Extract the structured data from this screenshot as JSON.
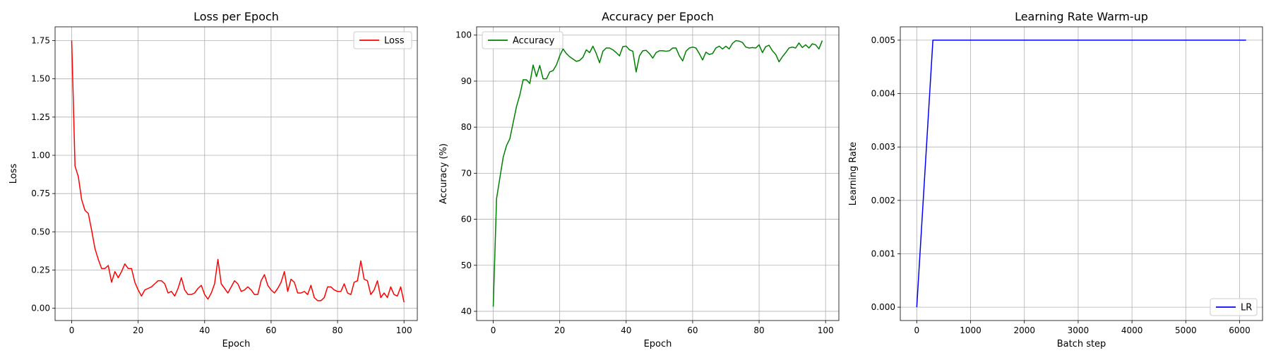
{
  "chart_data": [
    {
      "type": "line",
      "title": "Loss per Epoch",
      "xlabel": "Epoch",
      "ylabel": "Loss",
      "xlim": [
        -5,
        104
      ],
      "ylim": [
        -0.08,
        1.84
      ],
      "xticks": [
        0,
        20,
        40,
        60,
        80,
        100
      ],
      "yticks": [
        0.0,
        0.25,
        0.5,
        0.75,
        1.0,
        1.25,
        1.5,
        1.75
      ],
      "ytick_labels": [
        "0.00",
        "0.25",
        "0.50",
        "0.75",
        "1.00",
        "1.25",
        "1.50",
        "1.75"
      ],
      "grid": true,
      "legend": "top-right",
      "series": [
        {
          "name": "Loss",
          "color": "#ff0000",
          "values": [
            1.75,
            0.93,
            0.86,
            0.71,
            0.64,
            0.62,
            0.51,
            0.39,
            0.32,
            0.26,
            0.26,
            0.28,
            0.17,
            0.24,
            0.2,
            0.24,
            0.29,
            0.26,
            0.26,
            0.17,
            0.12,
            0.08,
            0.12,
            0.13,
            0.14,
            0.16,
            0.18,
            0.18,
            0.16,
            0.1,
            0.11,
            0.08,
            0.13,
            0.2,
            0.12,
            0.09,
            0.09,
            0.1,
            0.13,
            0.15,
            0.09,
            0.06,
            0.1,
            0.16,
            0.32,
            0.16,
            0.13,
            0.1,
            0.14,
            0.18,
            0.16,
            0.11,
            0.12,
            0.14,
            0.12,
            0.09,
            0.09,
            0.18,
            0.22,
            0.15,
            0.12,
            0.1,
            0.13,
            0.17,
            0.24,
            0.11,
            0.19,
            0.17,
            0.1,
            0.1,
            0.11,
            0.09,
            0.15,
            0.07,
            0.05,
            0.05,
            0.07,
            0.14,
            0.14,
            0.12,
            0.11,
            0.11,
            0.16,
            0.1,
            0.09,
            0.17,
            0.18,
            0.31,
            0.19,
            0.18,
            0.09,
            0.12,
            0.18,
            0.07,
            0.1,
            0.07,
            0.14,
            0.09,
            0.08,
            0.14,
            0.04
          ]
        }
      ]
    },
    {
      "type": "line",
      "title": "Accuracy per Epoch",
      "xlabel": "Epoch",
      "ylabel": "Accuracy (%)",
      "xlim": [
        -5,
        104
      ],
      "ylim": [
        38,
        101.8
      ],
      "xticks": [
        0,
        20,
        40,
        60,
        80,
        100
      ],
      "yticks": [
        40,
        50,
        60,
        70,
        80,
        90,
        100
      ],
      "ytick_labels": [
        "40",
        "50",
        "60",
        "70",
        "80",
        "90",
        "100"
      ],
      "grid": true,
      "legend": "top-left",
      "series": [
        {
          "name": "Accuracy",
          "color": "#008000",
          "values": [
            41.0,
            64.5,
            69.0,
            73.5,
            76.0,
            77.5,
            81.0,
            84.5,
            87.0,
            90.3,
            90.3,
            89.5,
            93.5,
            91.0,
            93.4,
            90.5,
            90.5,
            92.0,
            92.3,
            93.5,
            95.5,
            97.0,
            96.0,
            95.3,
            94.8,
            94.3,
            94.5,
            95.2,
            96.8,
            96.2,
            97.6,
            96.0,
            94.0,
            96.5,
            97.2,
            97.2,
            96.8,
            96.2,
            95.5,
            97.5,
            97.6,
            96.8,
            96.5,
            92.0,
            95.5,
            96.6,
            96.7,
            96.0,
            95.0,
            96.2,
            96.6,
            96.6,
            96.5,
            96.6,
            97.2,
            97.2,
            95.5,
            94.4,
            96.5,
            97.2,
            97.4,
            97.2,
            96.0,
            94.6,
            96.3,
            95.8,
            96.0,
            97.2,
            97.6,
            97.0,
            97.6,
            97.0,
            98.2,
            98.8,
            98.7,
            98.4,
            97.4,
            97.2,
            97.3,
            97.2,
            97.9,
            96.2,
            97.5,
            97.8,
            96.6,
            95.8,
            94.2,
            95.3,
            96.2,
            97.2,
            97.4,
            97.2,
            98.3,
            97.3,
            97.9,
            97.2,
            98.1,
            97.9,
            97.0,
            98.8
          ]
        }
      ]
    },
    {
      "type": "line",
      "title": "Learning Rate Warm-up",
      "xlabel": "Batch step",
      "ylabel": "Learning Rate",
      "xlim": [
        -306,
        6426
      ],
      "ylim": [
        -0.00025,
        0.00525
      ],
      "xticks": [
        0,
        1000,
        2000,
        3000,
        4000,
        5000,
        6000
      ],
      "yticks": [
        0.0,
        0.001,
        0.002,
        0.003,
        0.004,
        0.005
      ],
      "ytick_labels": [
        "0.000",
        "0.001",
        "0.002",
        "0.003",
        "0.004",
        "0.005"
      ],
      "grid": true,
      "legend": "bottom-right",
      "series": [
        {
          "name": "LR",
          "color": "#0000ff",
          "x": [
            0,
            300,
            6120
          ],
          "y": [
            0.0,
            0.005,
            0.005
          ]
        }
      ]
    }
  ]
}
